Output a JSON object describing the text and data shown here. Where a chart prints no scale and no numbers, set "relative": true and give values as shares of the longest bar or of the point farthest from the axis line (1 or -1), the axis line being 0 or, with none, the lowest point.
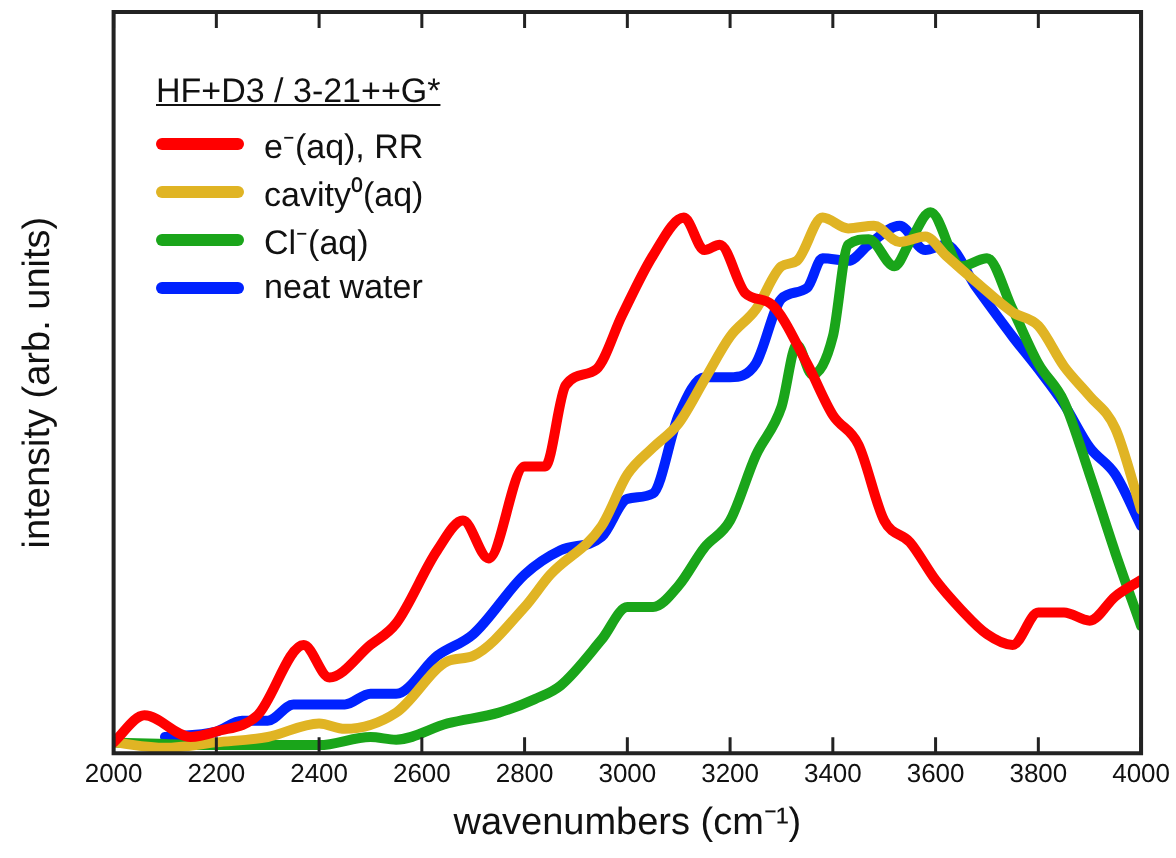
{
  "chart_data": {
    "type": "line",
    "relative": true,
    "xlabel": "wavenumbers (cm⁻¹)",
    "ylabel": "intensity (arb. units)",
    "legend_title": "HF+D3 / 3-21++G*",
    "legend": "top left",
    "grid": false,
    "marker": "none",
    "line_style": "solid",
    "tick_labels": "x",
    "xlim": [
      2000,
      4000
    ],
    "xticks": [
      2000,
      2200,
      2400,
      2600,
      2800,
      3000,
      3200,
      3400,
      3600,
      3800,
      4000
    ],
    "series": [
      {
        "name": "e⁻(aq), RR",
        "color": "#ff0000",
        "x": [
          2000,
          2060,
          2150,
          2200,
          2280,
          2370,
          2420,
          2500,
          2550,
          2630,
          2680,
          2730,
          2800,
          2840,
          2880,
          2940,
          2990,
          3050,
          3110,
          3150,
          3180,
          3230,
          3280,
          3350,
          3400,
          3450,
          3500,
          3550,
          3600,
          3650,
          3700,
          3750,
          3800,
          3850,
          3900,
          3950,
          4000
        ],
        "values": [
          0.02,
          0.07,
          0.03,
          0.04,
          0.07,
          0.2,
          0.14,
          0.2,
          0.24,
          0.375,
          0.43,
          0.36,
          0.53,
          0.53,
          0.68,
          0.71,
          0.81,
          0.92,
          0.99,
          0.93,
          0.94,
          0.85,
          0.83,
          0.72,
          0.625,
          0.57,
          0.43,
          0.39,
          0.32,
          0.265,
          0.22,
          0.2,
          0.26,
          0.26,
          0.245,
          0.29,
          0.32
        ]
      },
      {
        "name": "cavity⁰(aq)",
        "color": "#e0b424",
        "x": [
          2000,
          2100,
          2200,
          2300,
          2400,
          2450,
          2550,
          2650,
          2700,
          2800,
          2850,
          2950,
          3000,
          3050,
          3100,
          3150,
          3200,
          3250,
          3300,
          3330,
          3380,
          3430,
          3480,
          3530,
          3580,
          3620,
          3680,
          3750,
          3800,
          3850,
          3900,
          3950,
          4000
        ],
        "values": [
          0.02,
          0.01,
          0.02,
          0.03,
          0.055,
          0.045,
          0.075,
          0.17,
          0.18,
          0.27,
          0.33,
          0.42,
          0.515,
          0.565,
          0.61,
          0.69,
          0.77,
          0.82,
          0.9,
          0.91,
          0.99,
          0.97,
          0.975,
          0.945,
          0.955,
          0.92,
          0.87,
          0.815,
          0.79,
          0.715,
          0.66,
          0.6,
          0.45
        ]
      },
      {
        "name": "Cl⁻(aq)",
        "color": "#1aa51a",
        "x": [
          2000,
          2200,
          2400,
          2500,
          2550,
          2650,
          2750,
          2820,
          2870,
          2950,
          3000,
          3050,
          3100,
          3150,
          3200,
          3250,
          3300,
          3330,
          3360,
          3400,
          3430,
          3470,
          3520,
          3550,
          3590,
          3650,
          3700,
          3750,
          3800,
          3850,
          3900,
          3950,
          4000
        ],
        "values": [
          0.02,
          0.015,
          0.015,
          0.03,
          0.025,
          0.055,
          0.075,
          0.1,
          0.125,
          0.21,
          0.27,
          0.27,
          0.31,
          0.38,
          0.43,
          0.55,
          0.64,
          0.755,
          0.7,
          0.77,
          0.94,
          0.95,
          0.9,
          0.945,
          1,
          0.9,
          0.915,
          0.82,
          0.72,
          0.65,
          0.515,
          0.37,
          0.235
        ]
      },
      {
        "name": "neat water",
        "color": "#0022ff",
        "x": [
          2100,
          2200,
          2250,
          2300,
          2350,
          2450,
          2500,
          2550,
          2630,
          2700,
          2800,
          2870,
          2950,
          3000,
          3050,
          3100,
          3150,
          3200,
          3250,
          3300,
          3350,
          3380,
          3430,
          3470,
          3530,
          3580,
          3620,
          3680,
          3750,
          3800,
          3850,
          3900,
          3950,
          4000
        ],
        "values": [
          0.03,
          0.04,
          0.06,
          0.06,
          0.09,
          0.09,
          0.11,
          0.11,
          0.18,
          0.22,
          0.33,
          0.375,
          0.4,
          0.47,
          0.48,
          0.625,
          0.695,
          0.695,
          0.72,
          0.84,
          0.86,
          0.915,
          0.91,
          0.94,
          0.975,
          0.93,
          0.94,
          0.86,
          0.77,
          0.71,
          0.645,
          0.565,
          0.515,
          0.42
        ]
      }
    ]
  }
}
